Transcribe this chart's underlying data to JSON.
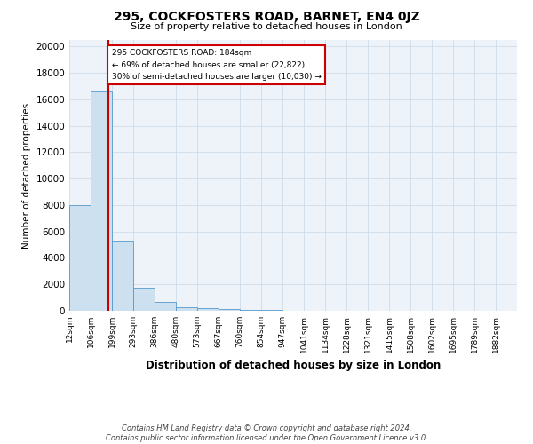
{
  "title": "295, COCKFOSTERS ROAD, BARNET, EN4 0JZ",
  "subtitle": "Size of property relative to detached houses in London",
  "xlabel": "Distribution of detached houses by size in London",
  "ylabel": "Number of detached properties",
  "annotation_lines": [
    "295 COCKFOSTERS ROAD: 184sqm",
    "← 69% of detached houses are smaller (22,822)",
    "30% of semi-detached houses are larger (10,030) →"
  ],
  "bar_left_edges": [
    12,
    106,
    199,
    293,
    386,
    480,
    573,
    667,
    760,
    854,
    947,
    1041,
    1134,
    1228,
    1321,
    1415,
    1508,
    1602,
    1695,
    1789
  ],
  "bar_widths": [
    94,
    93,
    94,
    93,
    94,
    93,
    94,
    93,
    94,
    93,
    94,
    93,
    94,
    93,
    94,
    93,
    94,
    93,
    94,
    93
  ],
  "bar_heights": [
    8000,
    16600,
    5300,
    1750,
    700,
    300,
    200,
    150,
    100,
    50,
    30,
    20,
    15,
    10,
    8,
    6,
    5,
    4,
    3,
    2
  ],
  "bar_color": "#cce0f0",
  "bar_edge_color": "#5599cc",
  "property_x": 184,
  "property_line_color": "#cc0000",
  "annotation_box_color": "#cc0000",
  "ylim": [
    0,
    20500
  ],
  "yticks": [
    0,
    2000,
    4000,
    6000,
    8000,
    10000,
    12000,
    14000,
    16000,
    18000,
    20000
  ],
  "x_tick_labels": [
    "12sqm",
    "106sqm",
    "199sqm",
    "293sqm",
    "386sqm",
    "480sqm",
    "573sqm",
    "667sqm",
    "760sqm",
    "854sqm",
    "947sqm",
    "1041sqm",
    "1134sqm",
    "1228sqm",
    "1321sqm",
    "1415sqm",
    "1508sqm",
    "1602sqm",
    "1695sqm",
    "1789sqm",
    "1882sqm"
  ],
  "x_tick_positions": [
    12,
    106,
    199,
    293,
    386,
    480,
    573,
    667,
    760,
    854,
    947,
    1041,
    1134,
    1228,
    1321,
    1415,
    1508,
    1602,
    1695,
    1789,
    1882
  ],
  "grid_color": "#d0dcea",
  "bg_color": "#eef3fa",
  "footer_line1": "Contains HM Land Registry data © Crown copyright and database right 2024.",
  "footer_line2": "Contains public sector information licensed under the Open Government Licence v3.0."
}
